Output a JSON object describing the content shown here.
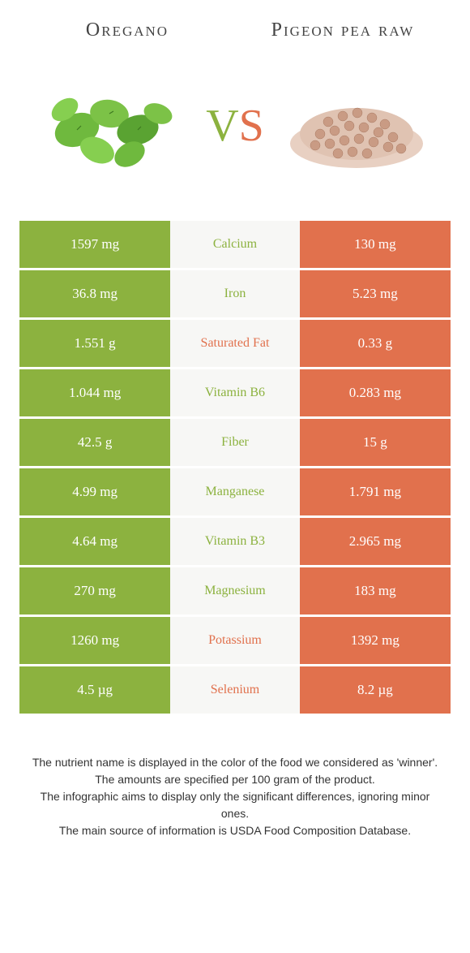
{
  "colors": {
    "left": "#8cb23f",
    "right": "#e1714d",
    "mid_bg": "#f7f7f5",
    "text_dark": "#444444",
    "footer_text": "#333333",
    "leaf_dark": "#4a8c2a",
    "leaf_light": "#7cc247",
    "pea_light": "#d9b8a6",
    "pea_dark": "#b88a74"
  },
  "left_title": "Oregano",
  "right_title": "Pigeon pea raw",
  "vs": {
    "v": "V",
    "s": "S"
  },
  "rows": [
    {
      "left": "1597 mg",
      "label": "Calcium",
      "right": "130 mg",
      "winner": "left"
    },
    {
      "left": "36.8 mg",
      "label": "Iron",
      "right": "5.23 mg",
      "winner": "left"
    },
    {
      "left": "1.551 g",
      "label": "Saturated Fat",
      "right": "0.33 g",
      "winner": "right"
    },
    {
      "left": "1.044 mg",
      "label": "Vitamin B6",
      "right": "0.283 mg",
      "winner": "left"
    },
    {
      "left": "42.5 g",
      "label": "Fiber",
      "right": "15 g",
      "winner": "left"
    },
    {
      "left": "4.99 mg",
      "label": "Manganese",
      "right": "1.791 mg",
      "winner": "left"
    },
    {
      "left": "4.64 mg",
      "label": "Vitamin B3",
      "right": "2.965 mg",
      "winner": "left"
    },
    {
      "left": "270 mg",
      "label": "Magnesium",
      "right": "183 mg",
      "winner": "left"
    },
    {
      "left": "1260 mg",
      "label": "Potassium",
      "right": "1392 mg",
      "winner": "right"
    },
    {
      "left": "4.5 µg",
      "label": "Selenium",
      "right": "8.2 µg",
      "winner": "right"
    }
  ],
  "footer": [
    "The nutrient name is displayed in the color of the food we considered as 'winner'.",
    "The amounts are specified per 100 gram of the product.",
    "The infographic aims to display only the significant differences, ignoring minor ones.",
    "The main source of information is USDA Food Composition Database."
  ]
}
